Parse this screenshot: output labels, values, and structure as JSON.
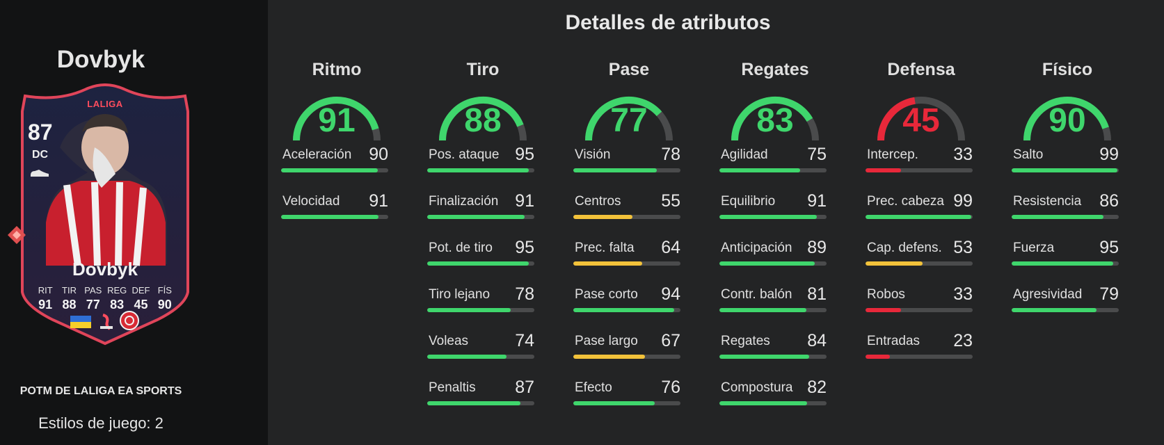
{
  "player": {
    "name": "Dovbyk",
    "card": {
      "league_badge": "LALIGA",
      "rating": "87",
      "position": "DC",
      "name": "Dovbyk",
      "mini_stats": [
        {
          "label": "RIT",
          "value": "91"
        },
        {
          "label": "TIR",
          "value": "88"
        },
        {
          "label": "PAS",
          "value": "77"
        },
        {
          "label": "REG",
          "value": "83"
        },
        {
          "label": "DEF",
          "value": "45"
        },
        {
          "label": "FÍS",
          "value": "90"
        }
      ],
      "icons": [
        "boot-icon",
        "ukraine-flag-icon",
        "laliga-logo-icon",
        "girona-crest-icon",
        "rarity-gem-icon"
      ]
    },
    "promo_title": "POTM DE LALIGA EA SPORTS",
    "playstyles": "Estilos de juego: 2"
  },
  "colors": {
    "high": "#3fd66c",
    "mid": "#f2c23a",
    "low": "#e8283a",
    "track": "#4a4b4c",
    "card_border": "#e0455a"
  },
  "main": {
    "title": "Detalles de atributos",
    "categories": [
      {
        "title": "Ritmo",
        "value": 91,
        "stats": [
          {
            "label": "Aceleración",
            "value": 90
          },
          {
            "label": "Velocidad",
            "value": 91
          }
        ]
      },
      {
        "title": "Tiro",
        "value": 88,
        "stats": [
          {
            "label": "Pos. ataque",
            "value": 95
          },
          {
            "label": "Finalización",
            "value": 91
          },
          {
            "label": "Pot. de tiro",
            "value": 95
          },
          {
            "label": "Tiro lejano",
            "value": 78
          },
          {
            "label": "Voleas",
            "value": 74
          },
          {
            "label": "Penaltis",
            "value": 87
          }
        ]
      },
      {
        "title": "Pase",
        "value": 77,
        "stats": [
          {
            "label": "Visión",
            "value": 78
          },
          {
            "label": "Centros",
            "value": 55
          },
          {
            "label": "Prec. falta",
            "value": 64
          },
          {
            "label": "Pase corto",
            "value": 94
          },
          {
            "label": "Pase largo",
            "value": 67
          },
          {
            "label": "Efecto",
            "value": 76
          }
        ]
      },
      {
        "title": "Regates",
        "value": 83,
        "stats": [
          {
            "label": "Agilidad",
            "value": 75
          },
          {
            "label": "Equilibrio",
            "value": 91
          },
          {
            "label": "Anticipación",
            "value": 89
          },
          {
            "label": "Contr. balón",
            "value": 81
          },
          {
            "label": "Regates",
            "value": 84
          },
          {
            "label": "Compostura",
            "value": 82
          }
        ]
      },
      {
        "title": "Defensa",
        "value": 45,
        "stats": [
          {
            "label": "Intercep.",
            "value": 33
          },
          {
            "label": "Prec. cabeza",
            "value": 99
          },
          {
            "label": "Cap. defens.",
            "value": 53
          },
          {
            "label": "Robos",
            "value": 33
          },
          {
            "label": "Entradas",
            "value": 23
          }
        ]
      },
      {
        "title": "Físico",
        "value": 90,
        "stats": [
          {
            "label": "Salto",
            "value": 99
          },
          {
            "label": "Resistencia",
            "value": 86
          },
          {
            "label": "Fuerza",
            "value": 95
          },
          {
            "label": "Agresividad",
            "value": 79
          }
        ]
      }
    ]
  }
}
